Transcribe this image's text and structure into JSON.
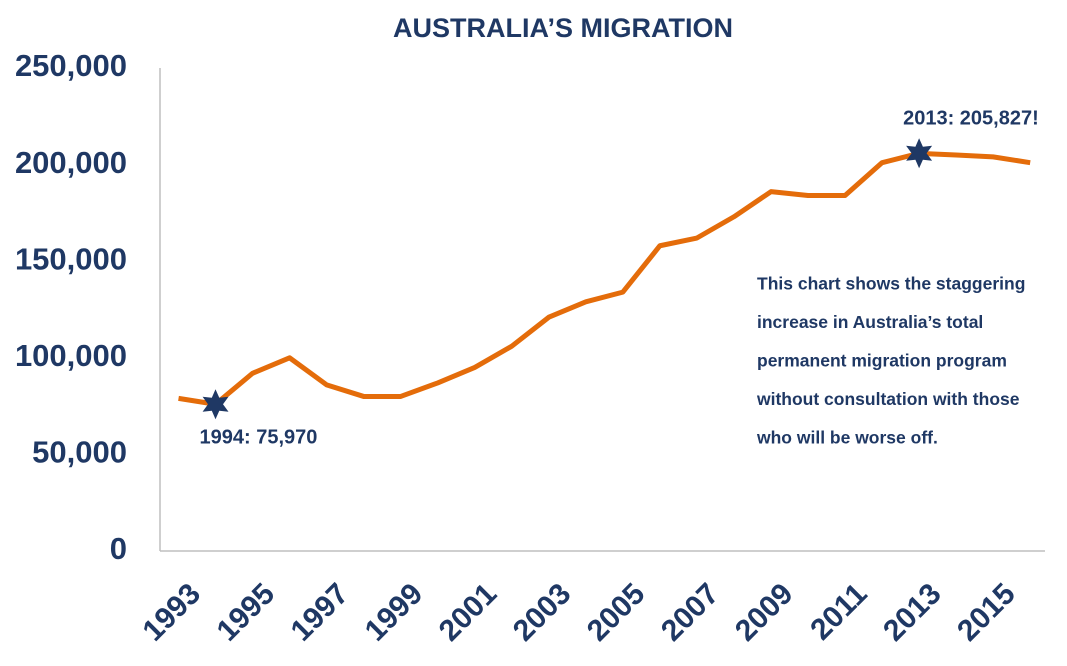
{
  "chart_data": {
    "type": "line",
    "title": "AUSTRALIA’S MIGRATION",
    "x": [
      1993,
      1994,
      1995,
      1996,
      1997,
      1998,
      1999,
      2000,
      2001,
      2002,
      2003,
      2004,
      2005,
      2006,
      2007,
      2008,
      2009,
      2010,
      2011,
      2012,
      2013,
      2014,
      2015,
      2016
    ],
    "series": [
      {
        "color": "#e46c0a",
        "values": [
          79000,
          75970,
          92000,
          100000,
          86000,
          80000,
          80000,
          87000,
          95000,
          106000,
          121000,
          129000,
          134000,
          158000,
          162000,
          173000,
          186000,
          184000,
          184000,
          201000,
          205827,
          205000,
          204000,
          201000
        ]
      }
    ],
    "xlim": [
      1992.5,
      2016.4
    ],
    "xticks": [
      1993,
      1995,
      1997,
      1999,
      2001,
      2003,
      2005,
      2007,
      2009,
      2011,
      2013,
      2015
    ],
    "ylim": [
      0,
      250000
    ],
    "yticks": [
      0,
      {
        "value": 50000,
        "label": "50,000"
      },
      {
        "value": 100000,
        "label": "100,000"
      },
      {
        "value": 150000,
        "label": "150,000"
      },
      {
        "value": 200000,
        "label": "200,000"
      },
      {
        "value": 250000,
        "label": "250,000"
      }
    ],
    "annotations": [
      {
        "text": "1994: 75,970"
      },
      {
        "text": "2013: 205,827!"
      }
    ],
    "note": [
      "This chart shows the staggering",
      "increase in Australia’s total",
      "permanent migration program",
      "without consultation with those",
      "who will be worse off."
    ],
    "marker_color": "#1f3864"
  }
}
